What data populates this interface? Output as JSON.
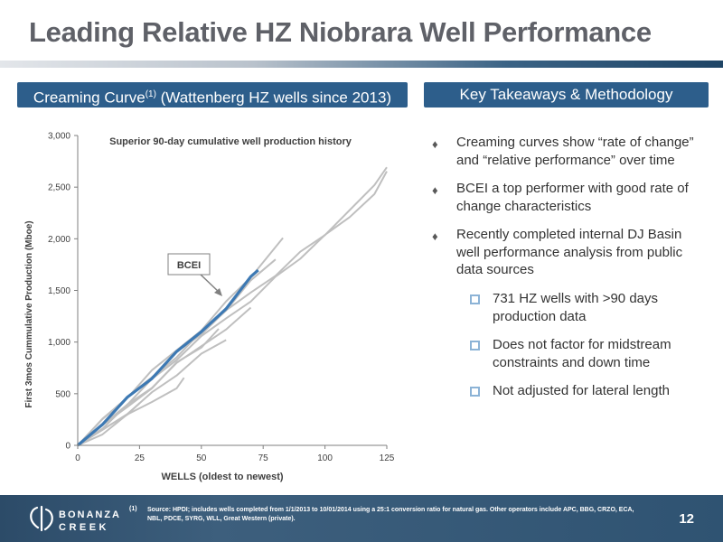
{
  "title": "Leading Relative HZ Niobrara Well Performance",
  "left_header": {
    "text": "Creaming Curve",
    "sup": "(1)",
    "suffix": " (Wattenberg HZ wells since 2013)"
  },
  "right_header": "Key Takeaways & Methodology",
  "bullets": [
    "Creaming curves show “rate of change” and “relative performance” over time",
    "BCEI a top performer with good rate of change characteristics",
    "Recently completed internal DJ Basin well performance analysis from public data sources"
  ],
  "sub_bullets": [
    "731 HZ wells with >90 days production data",
    "Does not factor for midstream constraints and down time",
    "Not adjusted for lateral length"
  ],
  "footnote_number": "(1)",
  "footnote": "Source: HPDI; includes wells completed from 1/1/2013 to 10/01/2014 using a 25:1 conversion ratio for natural gas. Other operators include APC, BBG, CRZO, ECA, NBL, PDCE, SYRG, WLL, Great Western (private).",
  "logo_text": [
    "BONANZA",
    "CREEK"
  ],
  "page_number": "12",
  "colors": {
    "accent": "#2d5e8b",
    "bcei_line": "#3d79b3",
    "peer_lines": "#bfbfbf"
  },
  "chart_data": {
    "type": "line",
    "title": "Superior 90-day cumulative well production history",
    "xlabel": "WELLS (oldest to newest)",
    "ylabel": "First 3mos Cummulative Production (Mboe)",
    "xlim": [
      0,
      125
    ],
    "ylim": [
      0,
      3000
    ],
    "xticks": [
      0,
      25,
      50,
      75,
      100,
      125
    ],
    "yticks": [
      0,
      500,
      1000,
      1500,
      2000,
      2500,
      3000
    ],
    "ytick_labels": [
      "0",
      "500",
      "1,000",
      "1,500",
      "2,000",
      "2,500",
      "3,000"
    ],
    "annotation": "BCEI",
    "series": [
      {
        "x": [
          0,
          10,
          20,
          30,
          40,
          50,
          60,
          70,
          80,
          90,
          100,
          110,
          120,
          125
        ],
        "values": [
          0,
          200,
          420,
          630,
          840,
          1030,
          1230,
          1420,
          1620,
          1820,
          2010,
          2210,
          2460,
          2640
        ]
      },
      {
        "x": [
          0,
          10,
          20,
          30,
          40,
          50,
          60,
          70,
          80,
          90,
          100,
          110,
          120,
          125
        ],
        "values": [
          0,
          230,
          460,
          680,
          890,
          1090,
          1280,
          1480,
          1670,
          1860,
          2050,
          2250,
          2520,
          2720
        ]
      },
      {
        "x": [
          0,
          10,
          20,
          30,
          40,
          50,
          60,
          70,
          80
        ],
        "values": [
          0,
          210,
          440,
          660,
          880,
          1090,
          1320,
          1570,
          1800
        ]
      },
      {
        "x": [
          0,
          10,
          20,
          30,
          40,
          50,
          60,
          70,
          83
        ],
        "values": [
          0,
          240,
          470,
          700,
          920,
          1140,
          1380,
          1640,
          1980
        ]
      },
      {
        "x": [
          0,
          10,
          20,
          30,
          40,
          50,
          60,
          70
        ],
        "values": [
          0,
          190,
          380,
          570,
          770,
          960,
          1150,
          1320
        ]
      },
      {
        "x": [
          0,
          10,
          20,
          30,
          40,
          50,
          60
        ],
        "values": [
          0,
          150,
          330,
          500,
          690,
          860,
          1020
        ]
      },
      {
        "x": [
          0,
          10,
          20,
          30,
          40,
          50,
          57
        ],
        "values": [
          0,
          170,
          370,
          580,
          790,
          960,
          1100
        ]
      },
      {
        "x": [
          0,
          10,
          20,
          30,
          40,
          43
        ],
        "values": [
          0,
          120,
          270,
          420,
          580,
          640
        ]
      },
      {
        "x": [
          0,
          10,
          20,
          25
        ],
        "values": [
          0,
          140,
          310,
          380
        ]
      },
      {
        "x": [
          0,
          10,
          20,
          30,
          40,
          50,
          60,
          70,
          73
        ],
        "values": [
          0,
          230,
          450,
          660,
          880,
          1100,
          1350,
          1620,
          1710
        ],
        "highlight": true
      }
    ]
  }
}
